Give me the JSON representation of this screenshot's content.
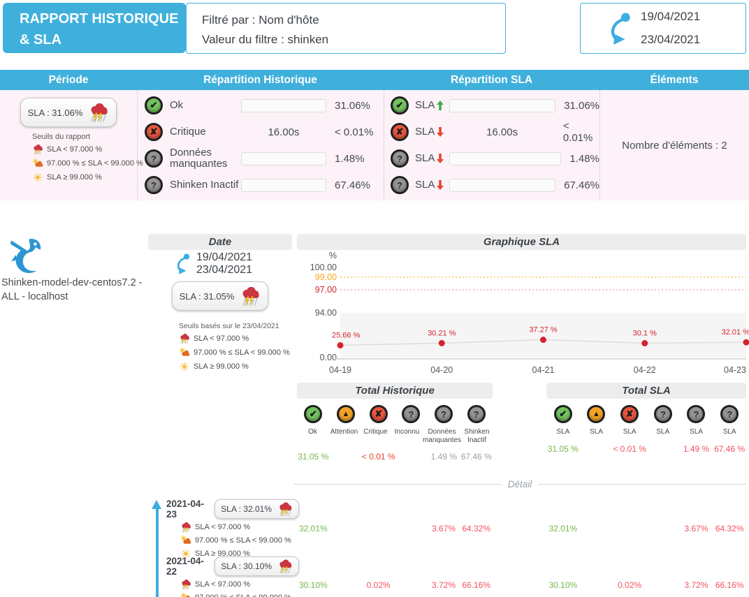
{
  "colors": {
    "accent": "#3fb0dc",
    "pink": "#fdf2f8",
    "blue": "#3daee0",
    "green_bar": "#5dc520",
    "gray_bar": "#8c8c8c",
    "green_text": "#74b749",
    "red_text": "#e9432d",
    "pinkred_text": "#f4515f",
    "gray_text": "#9aa0a6",
    "orange": "#f6a821",
    "dark": "#434a54"
  },
  "header": {
    "title": "RAPPORT HISTORIQUE & SLA",
    "filter_line1": "Filtré par : Nom d'hôte",
    "filter_line2": "Valeur du filtre : shinken",
    "date_start": "19/04/2021",
    "date_end": "23/04/2021"
  },
  "summary": {
    "columns": [
      "Période",
      "Répartition Historique",
      "Répartition SLA",
      "Éléments"
    ],
    "periode": {
      "sla_badge": "SLA : 31.06%",
      "seuils_title": "Seuils du rapport"
    },
    "historique_rows": [
      {
        "label": "Ok",
        "bar": 31.06,
        "value": "31.06%"
      },
      {
        "label": "Critique",
        "mid": "16.00s",
        "value": "< 0.01%"
      },
      {
        "label": "Données manquantes",
        "bar": 1.48,
        "value": "1.48%"
      },
      {
        "label": "Shinken Inactif",
        "bar": 67.46,
        "value": "67.46%"
      }
    ],
    "sla_rows": [
      {
        "label": "SLA",
        "bar": 31.06,
        "value": "31.06%"
      },
      {
        "label": "SLA",
        "mid": "16.00s",
        "value": "< 0.01%"
      },
      {
        "label": "SLA",
        "bar": 1.48,
        "value": "1.48%"
      },
      {
        "label": "SLA",
        "bar": 67.46,
        "value": "67.46%"
      }
    ],
    "elements_text": "Nombre d'éléments : 2"
  },
  "thresholds": {
    "low": "SLA < 97.000 %",
    "mid": "97.000 % ≤ SLA < 99.000 %",
    "high": "SLA ≥ 99.000 %"
  },
  "host": {
    "name": "Shinken-model-dev-centos7.2 - ALL - localhost",
    "date_header": "Date",
    "date_start": "19/04/2021",
    "date_end": "23/04/2021",
    "sla_badge": "SLA : 31.05%",
    "seuils_title": "Seuils basés sur le 23/04/2021"
  },
  "chart_data": {
    "type": "line",
    "title": "Graphique SLA",
    "ylabel": "%",
    "x": [
      "04-19",
      "04-20",
      "04-21",
      "04-22",
      "04-23"
    ],
    "values": [
      25.66,
      30.21,
      37.27,
      30.1,
      32.01
    ],
    "point_labels": [
      "25.66 %",
      "30.21 %",
      "37.27 %",
      "30.1 %",
      "32.01 %"
    ],
    "ytick_labels": [
      "%",
      "100.00",
      "99.00",
      "97.00",
      "94.00",
      "0.00"
    ],
    "warning_line": 99.0,
    "critical_line": 97.0,
    "y_segment_max": 94,
    "ylim": [
      0,
      100
    ],
    "grid": false,
    "legend": "none"
  },
  "totals": {
    "historique": {
      "title": "Total Historique",
      "labels": [
        "Ok",
        "Attention",
        "Critique",
        "Inconnu",
        "Données manquantes",
        "Shinken Inactif"
      ],
      "values": [
        "31.05 %",
        "",
        "< 0.01 %",
        "",
        "1.49 %",
        "67.46 %"
      ]
    },
    "sla": {
      "title": "Total SLA",
      "labels": [
        "SLA",
        "SLA",
        "SLA",
        "SLA",
        "SLA",
        "SLA"
      ],
      "values": [
        "31.05 %",
        "",
        "< 0.01 %",
        "",
        "1.49 %",
        "67.46 %"
      ]
    }
  },
  "detail": {
    "divider": "Détail",
    "entries": [
      {
        "date": "2021-04-23",
        "sla_badge": "SLA : 32.01%",
        "hist_values": [
          "32.01%",
          "",
          "",
          "",
          "3.67%",
          "64.32%"
        ],
        "sla_values": [
          "32.01%",
          "",
          "",
          "",
          "3.67%",
          "64.32%"
        ]
      },
      {
        "date": "2021-04-22",
        "sla_badge": "SLA : 30.10%",
        "hist_values": [
          "30.10%",
          "",
          "0.02%",
          "",
          "3.72%",
          "66.16%"
        ],
        "sla_values": [
          "30.10%",
          "",
          "0.02%",
          "",
          "3.72%",
          "66.16%"
        ]
      }
    ]
  }
}
